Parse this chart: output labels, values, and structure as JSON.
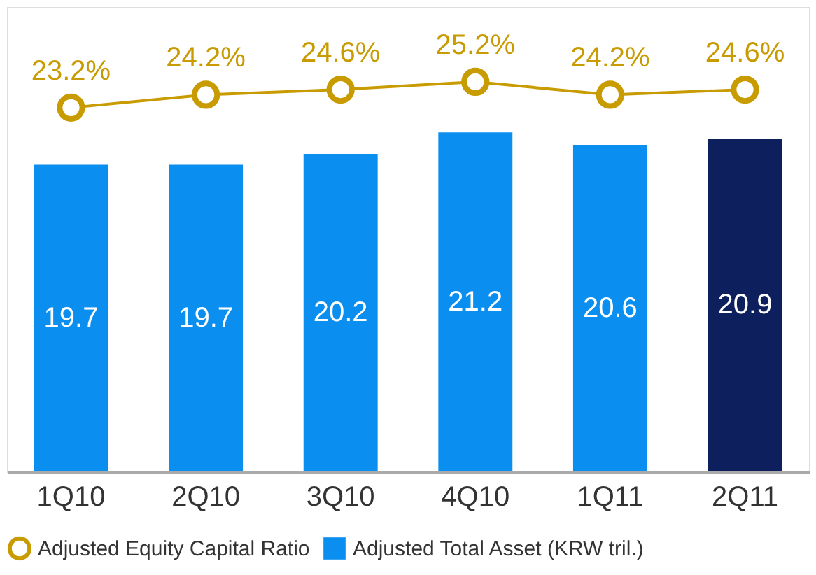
{
  "chart_data": {
    "type": "bar",
    "categories": [
      "1Q10",
      "2Q10",
      "3Q10",
      "4Q10",
      "1Q11",
      "2Q11"
    ],
    "series": [
      {
        "name": "Adjusted Total Asset (KRW tril.)",
        "type": "bar",
        "color": "#0a8ef0",
        "colors": [
          "#0a8ef0",
          "#0a8ef0",
          "#0a8ef0",
          "#0a8ef0",
          "#0a8ef0",
          "#0d1f5c"
        ],
        "values": [
          19.7,
          19.7,
          20.2,
          21.2,
          20.6,
          20.9
        ],
        "value_labels": [
          "19.7",
          "19.7",
          "20.2",
          "21.2",
          "20.6",
          "20.9"
        ]
      },
      {
        "name": "Adjusted Equity Capital Ratio",
        "type": "line",
        "axis": "y2",
        "color": "#c89b00",
        "marker": "circle",
        "values": [
          23.2,
          24.2,
          24.6,
          25.2,
          24.2,
          24.6
        ],
        "value_labels": [
          "23.2%",
          "24.2%",
          "24.6%",
          "25.2%",
          "24.2%",
          "24.6%"
        ]
      }
    ],
    "ylim": [
      5.5,
      27
    ],
    "y2lim": [
      -5,
      31
    ],
    "tick_labels": "x",
    "grid": false,
    "legend": "bottom"
  }
}
